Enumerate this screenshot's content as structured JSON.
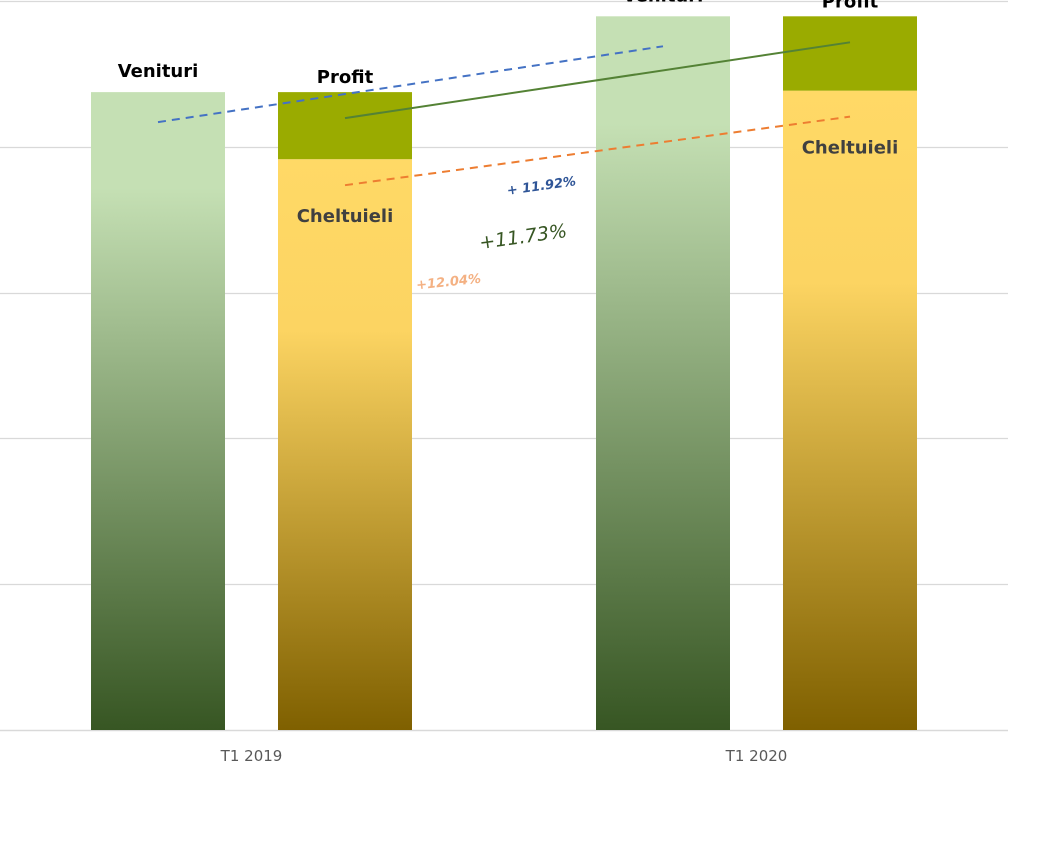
{
  "chart_data": {
    "type": "bar",
    "categories": [
      "T1 2019",
      "T1 2020"
    ],
    "ylim": [
      0,
      100
    ],
    "grid": true,
    "series": [
      {
        "name": "Venituri",
        "values": [
          87.5,
          97.9
        ]
      },
      {
        "name": "Cheltuieli",
        "values": [
          78.3,
          87.7
        ]
      },
      {
        "name": "Profit",
        "values": [
          9.2,
          10.2
        ]
      }
    ],
    "annotations": [
      {
        "id": "venituri-growth",
        "text": "+ 11.92%",
        "color": "#4472c4",
        "style": "dashed"
      },
      {
        "id": "profit-growth",
        "text": "+11.73%",
        "color": "#548235",
        "style": "solid"
      },
      {
        "id": "cheltuieli-growth",
        "text": "+12.04%",
        "color": "#ed7d31",
        "label_color": "#f4b183",
        "style": "dashed"
      }
    ],
    "colors": {
      "venituri_top": "#c5e0b4",
      "venituri_bottom": "#375623",
      "cheltuieli_top": "#ffd966",
      "cheltuieli_bottom": "#7f6000",
      "profit": "#9aab00",
      "grid": "#d9d9d9",
      "axis_text": "#595959"
    }
  }
}
